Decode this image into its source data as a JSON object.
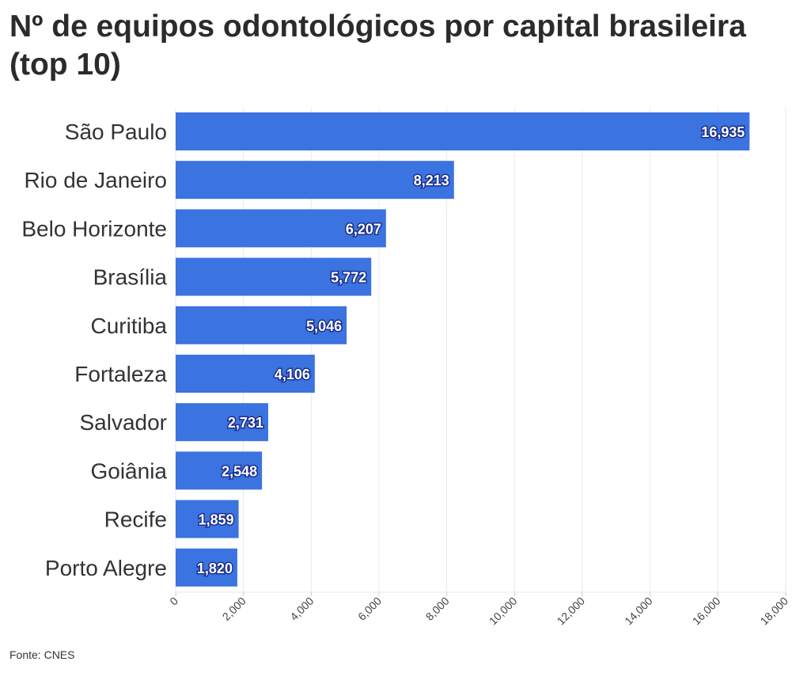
{
  "chart_data": {
    "type": "bar",
    "orientation": "horizontal",
    "title": "Nº de equipos odontológicos por capital brasileira (top 10)",
    "categories": [
      "São Paulo",
      "Rio de Janeiro",
      "Belo Horizonte",
      "Brasília",
      "Curitiba",
      "Fortaleza",
      "Salvador",
      "Goiânia",
      "Recife",
      "Porto Alegre"
    ],
    "values": [
      16935,
      8213,
      6207,
      5772,
      5046,
      4106,
      2731,
      2548,
      1859,
      1820
    ],
    "value_labels": [
      "16,935",
      "8,213",
      "6,207",
      "5,772",
      "5,046",
      "4,106",
      "2,731",
      "2,548",
      "1,859",
      "1,820"
    ],
    "xlim": [
      0,
      18000
    ],
    "xticks": [
      0,
      2000,
      4000,
      6000,
      8000,
      10000,
      12000,
      14000,
      16000,
      18000
    ],
    "xtick_labels": [
      "0",
      "2,000",
      "4,000",
      "6,000",
      "8,000",
      "10,000",
      "12,000",
      "14,000",
      "16,000",
      "18,000"
    ],
    "xlabel": "",
    "ylabel": "",
    "grid": true,
    "bar_color": "#3b73e0",
    "source": "Fonte: CNES"
  }
}
